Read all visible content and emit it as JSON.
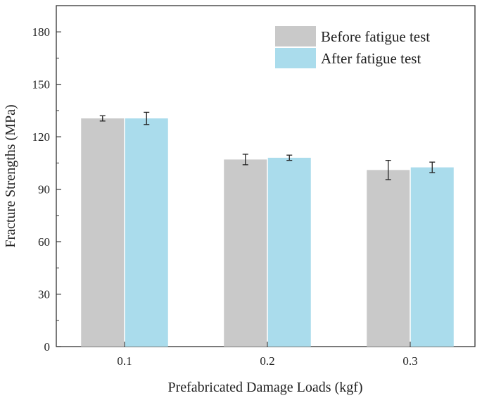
{
  "chart_data": {
    "type": "bar",
    "xlabel": "Prefabricated Damage Loads (kgf)",
    "ylabel": "Fracture Strengths (MPa)",
    "categories": [
      "0.1",
      "0.2",
      "0.3"
    ],
    "ylim": [
      0,
      195
    ],
    "yticks": [
      "0",
      "30",
      "60",
      "90",
      "120",
      "150",
      "180"
    ],
    "legend_position": "top-right",
    "grid": false,
    "series": [
      {
        "name": "Before fatigue test",
        "color": "#c9c9c9",
        "values": [
          130.5,
          107,
          101
        ],
        "errors": [
          1.5,
          3,
          5.5
        ]
      },
      {
        "name": "After fatigue test",
        "color": "#aadcec",
        "values": [
          130.5,
          108,
          102.5
        ],
        "errors": [
          3.5,
          1.5,
          3
        ]
      }
    ]
  }
}
